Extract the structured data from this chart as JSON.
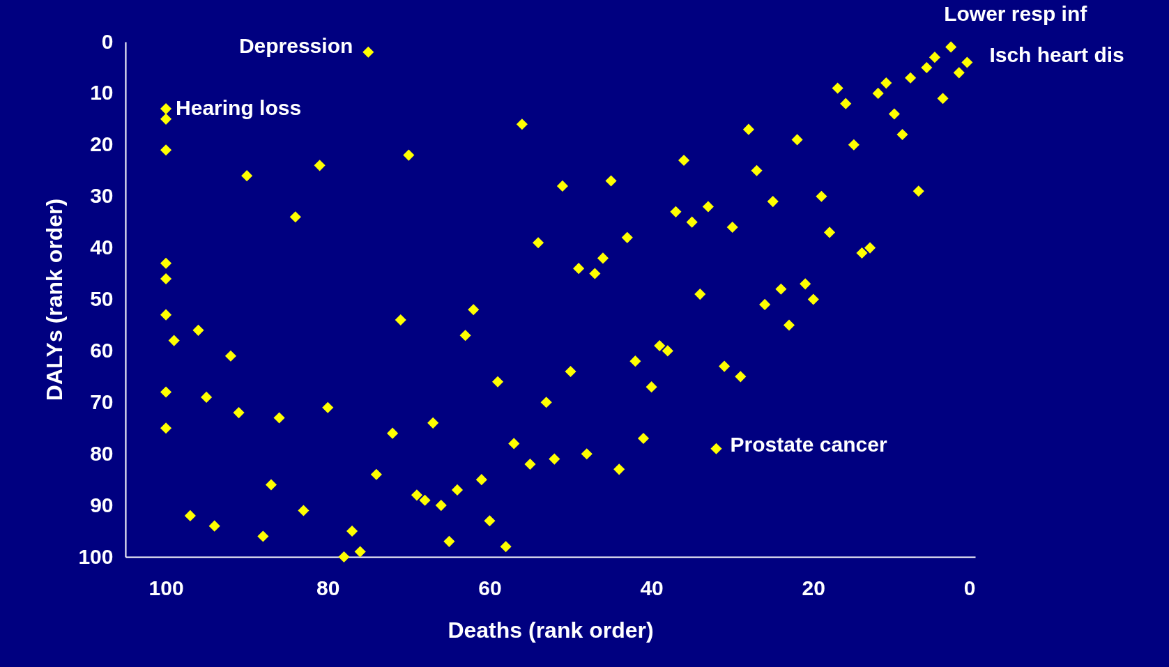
{
  "chart_data": {
    "type": "scatter",
    "xlabel": "Deaths (rank order)",
    "ylabel": "DALYs (rank order)",
    "xlim": [
      105,
      0
    ],
    "ylim": [
      100,
      0
    ],
    "xticks": [
      100,
      80,
      60,
      40,
      20,
      0
    ],
    "yticks": [
      0,
      10,
      20,
      30,
      40,
      50,
      60,
      70,
      80,
      90,
      100
    ],
    "grid": false,
    "marker": "diamond",
    "series": [
      {
        "color": "#ffff00",
        "x": [
          75,
          100,
          100,
          100,
          100,
          100,
          100,
          99,
          96,
          92,
          100,
          100,
          95,
          91,
          97,
          94,
          90,
          84,
          81,
          86,
          80,
          87,
          83,
          88,
          78,
          77,
          76,
          74,
          72,
          71,
          70,
          69,
          68,
          67,
          66,
          65,
          64,
          63,
          62,
          61,
          60,
          59,
          58,
          57,
          56,
          55,
          54,
          53,
          52,
          51,
          50,
          49,
          48,
          47,
          46,
          45,
          44,
          43,
          42,
          41,
          40,
          39,
          38,
          37,
          36,
          35,
          34,
          33,
          32,
          31,
          30,
          29,
          28,
          27,
          26,
          25,
          24,
          23,
          22,
          21,
          20,
          19,
          18,
          17,
          16,
          15,
          14,
          13,
          12,
          11,
          10,
          9,
          8,
          7,
          6,
          5,
          4,
          3,
          2,
          1
        ],
        "values": [
          2,
          13,
          15,
          21,
          43,
          46,
          53,
          58,
          56,
          61,
          68,
          75,
          69,
          72,
          92,
          94,
          26,
          34,
          24,
          73,
          71,
          86,
          91,
          96,
          100,
          95,
          99,
          84,
          76,
          54,
          22,
          88,
          89,
          74,
          90,
          97,
          87,
          57,
          52,
          85,
          93,
          66,
          98,
          78,
          16,
          82,
          39,
          70,
          81,
          28,
          64,
          44,
          80,
          45,
          42,
          27,
          83,
          38,
          62,
          77,
          67,
          59,
          60,
          33,
          23,
          35,
          49,
          32,
          79,
          63,
          36,
          65,
          17,
          25,
          51,
          31,
          48,
          55,
          19,
          47,
          50,
          30,
          37,
          9,
          12,
          20,
          41,
          40,
          10,
          8,
          14,
          18,
          7,
          29,
          5,
          3,
          11,
          1,
          6,
          4
        ]
      }
    ],
    "annotations": [
      {
        "text": "Depression",
        "x": 75,
        "y": 2
      },
      {
        "text": "Hearing loss",
        "x": 100,
        "y": 13
      },
      {
        "text": "Lower resp inf",
        "x": 3,
        "y": 1
      },
      {
        "text": "Isch heart dis",
        "x": 1,
        "y": 4
      },
      {
        "text": "Prostate cancer",
        "x": 32,
        "y": 79
      }
    ]
  }
}
